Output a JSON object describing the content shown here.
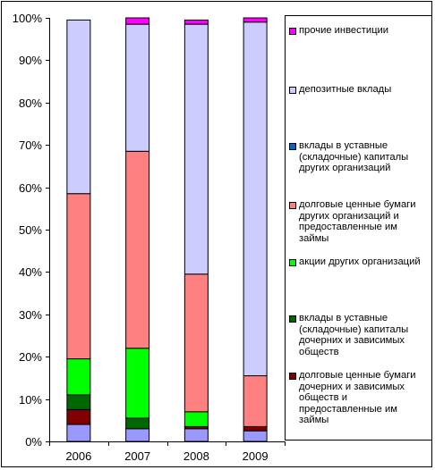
{
  "chart_data": {
    "type": "bar",
    "stacked": true,
    "categories": [
      "2006",
      "2007",
      "2008",
      "2009"
    ],
    "ylim": [
      0,
      100
    ],
    "y_ticks": [
      "0%",
      "10%",
      "20%",
      "30%",
      "40%",
      "50%",
      "60%",
      "70%",
      "80%",
      "90%",
      "100%"
    ],
    "legend_position": "right",
    "grid": false,
    "series": [
      {
        "name": "прочие инвестиции",
        "color": "#ff00ff",
        "values": [
          0,
          1.5,
          1,
          1
        ]
      },
      {
        "name": "депозитные вклады",
        "color": "#ccccff",
        "values": [
          41,
          30,
          59,
          83.5
        ]
      },
      {
        "name": "вклады в уставные (складочные) капиталы других организаций",
        "color": "#0066cc",
        "values": [
          0,
          0,
          0,
          0
        ]
      },
      {
        "name": "долговые ценные бумаги других организаций и предоставленные им займы",
        "color": "#ff8080",
        "values": [
          39,
          46.5,
          32.5,
          12
        ]
      },
      {
        "name": "акции других организаций",
        "color": "#00ff00",
        "values": [
          8.5,
          16.5,
          3.5,
          0
        ]
      },
      {
        "name": "вклады в уставные (складочные) капиталы дочерних и зависимых обществ",
        "color": "#006600",
        "values": [
          3.5,
          2.5,
          0,
          0
        ]
      },
      {
        "name": "долговые ценные бумаги дочерних и зависимых обществ и предоставленные им займы",
        "color": "#800000",
        "values": [
          3.5,
          0,
          0.5,
          1
        ]
      },
      {
        "name": "",
        "color": "#9999ff",
        "values": [
          4,
          3,
          3,
          2.5
        ]
      }
    ]
  }
}
